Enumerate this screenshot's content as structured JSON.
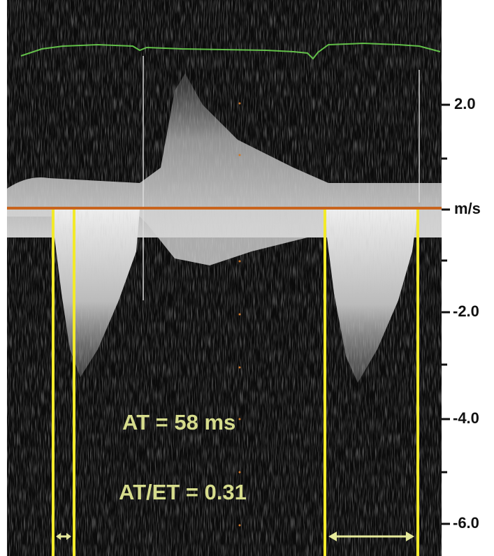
{
  "scale": {
    "ticks": [
      "2.0",
      "m/s",
      "-2.0",
      "-4.0",
      "-6.0"
    ]
  },
  "annotations": [
    "AT = 58 ms",
    "AT/ET = 0.31"
  ]
}
